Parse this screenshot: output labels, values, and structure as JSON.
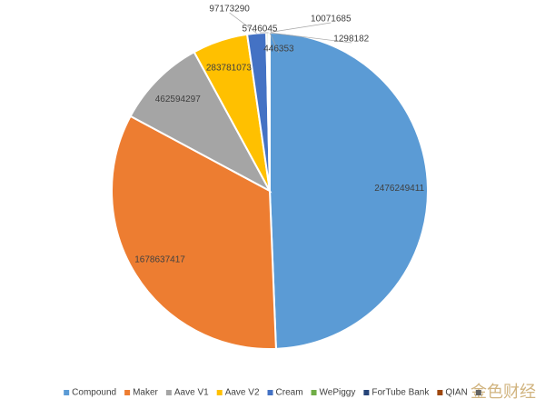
{
  "chart_data": {
    "type": "pie",
    "categories": [
      "Compound",
      "Maker",
      "Aave V1",
      "Aave V2",
      "Cream",
      "WePiggy",
      "ForTube Bank",
      "QIAN",
      null
    ],
    "values": [
      2476249411,
      1678637417,
      462594297,
      283781073,
      97173290,
      10071685,
      5746045,
      1298182,
      446353
    ],
    "colors": [
      "#5b9bd5",
      "#ed7d31",
      "#a5a5a5",
      "#ffc000",
      "#4472c4",
      "#70ad47",
      "#264478",
      "#9e480e",
      "#636363"
    ],
    "legend": "bottom"
  },
  "watermark": "金色财经"
}
